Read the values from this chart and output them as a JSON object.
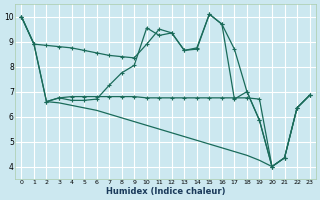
{
  "xlabel": "Humidex (Indice chaleur)",
  "background_color": "#cce8f0",
  "grid_color": "#ffffff",
  "line_color": "#1a6b5a",
  "xlim": [
    -0.5,
    23.5
  ],
  "ylim": [
    3.5,
    10.5
  ],
  "xticks": [
    0,
    1,
    2,
    3,
    4,
    5,
    6,
    7,
    8,
    9,
    10,
    11,
    12,
    13,
    14,
    15,
    16,
    17,
    18,
    19,
    20,
    21,
    22,
    23
  ],
  "yticks": [
    4,
    5,
    6,
    7,
    8,
    9,
    10
  ],
  "line1_x": [
    0,
    1,
    2,
    3,
    4,
    5,
    6,
    7,
    8,
    9,
    10,
    11,
    12,
    13,
    14,
    15,
    16,
    17,
    18,
    19,
    20,
    21,
    22,
    23
  ],
  "line1_y": [
    10.0,
    8.9,
    8.85,
    8.8,
    8.75,
    8.65,
    8.55,
    8.45,
    8.4,
    8.35,
    8.9,
    9.5,
    9.35,
    8.65,
    8.7,
    10.1,
    9.7,
    8.7,
    7.0,
    5.85,
    4.0,
    4.35,
    6.35,
    6.85
  ],
  "line2_x": [
    0,
    1,
    2,
    3,
    4,
    5,
    6,
    7,
    8,
    9,
    10,
    11,
    12,
    13,
    14,
    15,
    16,
    17,
    18,
    19,
    20,
    21,
    22,
    23
  ],
  "line2_y": [
    10.0,
    8.9,
    6.6,
    6.75,
    6.65,
    6.65,
    6.7,
    7.25,
    7.75,
    8.05,
    9.55,
    9.25,
    9.35,
    8.65,
    8.75,
    10.1,
    9.7,
    6.7,
    7.0,
    5.85,
    4.0,
    4.35,
    6.35,
    6.85
  ],
  "line3_x": [
    0,
    1,
    2,
    3,
    4,
    5,
    6,
    7,
    8,
    9,
    10,
    11,
    12,
    13,
    14,
    15,
    16,
    17,
    18,
    19,
    20,
    21,
    22,
    23
  ],
  "line3_y": [
    10.0,
    8.9,
    6.6,
    6.75,
    6.8,
    6.8,
    6.8,
    6.8,
    6.8,
    6.8,
    6.75,
    6.75,
    6.75,
    6.75,
    6.75,
    6.75,
    6.75,
    6.75,
    6.75,
    6.7,
    4.0,
    4.35,
    6.35,
    6.85
  ],
  "line4_x": [
    2,
    3,
    4,
    5,
    6,
    7,
    8,
    9,
    10,
    11,
    12,
    13,
    14,
    15,
    16,
    17,
    18,
    19,
    20
  ],
  "line4_y": [
    6.6,
    6.55,
    6.45,
    6.35,
    6.25,
    6.1,
    5.95,
    5.8,
    5.65,
    5.5,
    5.35,
    5.2,
    5.05,
    4.9,
    4.75,
    4.6,
    4.45,
    4.25,
    4.0
  ]
}
